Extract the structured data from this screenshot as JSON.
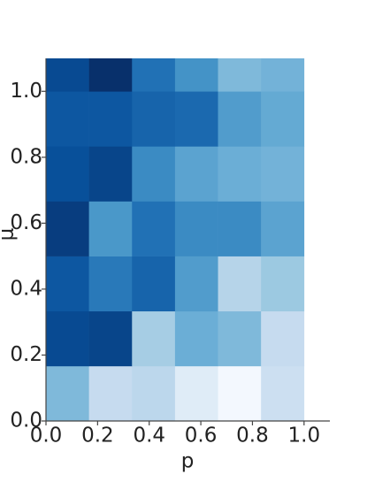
{
  "chart_data": {
    "type": "heatmap",
    "x_label": "p",
    "y_label": "μ",
    "colormap": "Blues",
    "vlim": [
      0,
      1
    ],
    "xbins": [
      0,
      0.1667,
      0.3333,
      0.5,
      0.6667,
      0.8333,
      1.0
    ],
    "ybins": [
      0,
      0.1667,
      0.3333,
      0.5,
      0.6667,
      0.8333,
      1.0,
      1.1
    ],
    "values": [
      [
        0.45,
        0.25,
        0.28,
        0.12,
        0.02,
        0.22
      ],
      [
        0.9,
        0.92,
        0.35,
        0.5,
        0.45,
        0.25
      ],
      [
        0.85,
        0.72,
        0.8,
        0.58,
        0.3,
        0.38
      ],
      [
        0.95,
        0.6,
        0.75,
        0.65,
        0.65,
        0.55
      ],
      [
        0.88,
        0.92,
        0.65,
        0.55,
        0.5,
        0.48
      ],
      [
        0.85,
        0.85,
        0.8,
        0.78,
        0.58,
        0.52
      ],
      [
        0.9,
        1.0,
        0.75,
        0.62,
        0.45,
        0.48
      ]
    ],
    "xlim": [
      0,
      1.1
    ],
    "ylim": [
      0,
      1.1
    ],
    "xticks": [
      {
        "value": 0,
        "label": "0.0"
      },
      {
        "value": 0.2,
        "label": "0.2"
      },
      {
        "value": 0.4,
        "label": "0.4"
      },
      {
        "value": 0.6,
        "label": "0.6"
      },
      {
        "value": 0.8,
        "label": "0.8"
      },
      {
        "value": 1.0,
        "label": "1.0"
      }
    ],
    "yticks": [
      {
        "value": 0,
        "label": "0.0"
      },
      {
        "value": 0.2,
        "label": "0.2"
      },
      {
        "value": 0.4,
        "label": "0.4"
      },
      {
        "value": 0.6,
        "label": "0.6"
      },
      {
        "value": 0.8,
        "label": "0.8"
      },
      {
        "value": 1.0,
        "label": "1.0"
      }
    ]
  }
}
